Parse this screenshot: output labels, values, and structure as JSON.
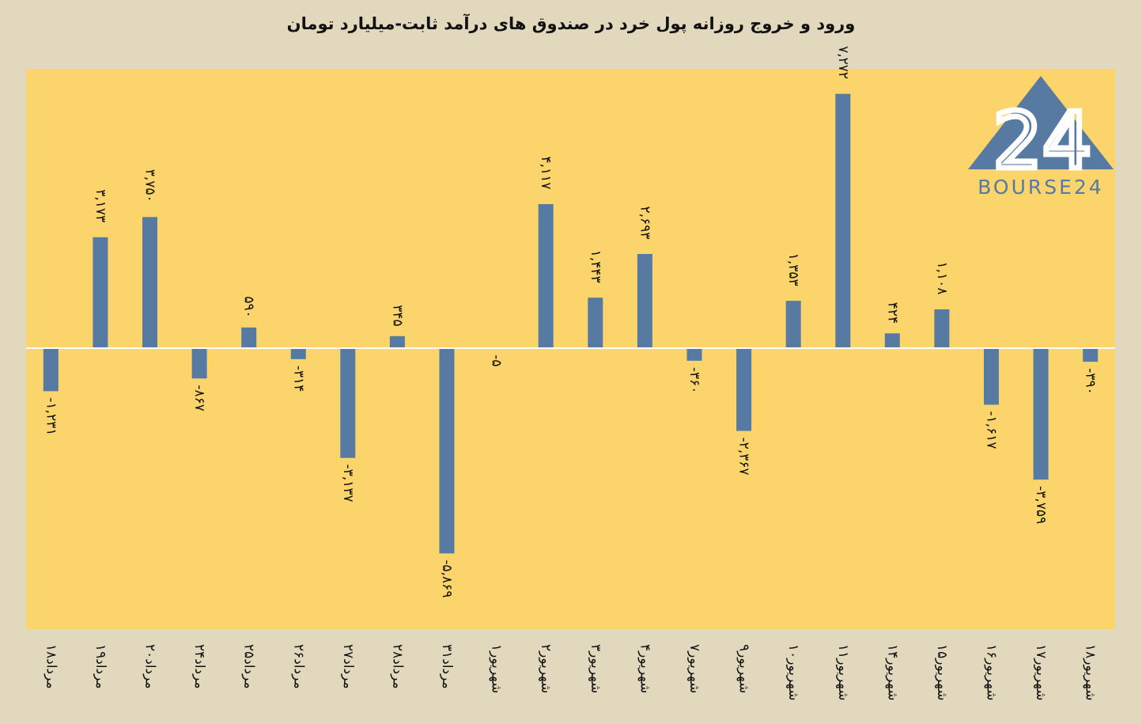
{
  "chart_data": {
    "type": "bar",
    "title": "ورود و خروج روزانه پول خرد در صندوق های درآمد ثابت-میلیارد تومان",
    "xlabel": "",
    "ylabel": "",
    "ylim": [
      -7000,
      8000
    ],
    "grid": false,
    "legend": "none",
    "categories": [
      "۱۸مرداد",
      "۱۹مرداد",
      "۲۰مرداد",
      "۲۴مرداد",
      "۲۵مرداد",
      "۲۶مرداد",
      "۲۷مرداد",
      "۲۸مرداد",
      "۳۱مرداد",
      "۱شهریور",
      "۲شهریور",
      "۳شهریور",
      "۴شهریور",
      "۷شهریور",
      "۹شهریور",
      "۱۰شهریور",
      "۱۱شهریور",
      "۱۴شهریور",
      "۱۵شهریور",
      "۱۶شهریور",
      "۱۷شهریور",
      "۱۸شهریور"
    ],
    "values": [
      -1231,
      3173,
      3750,
      -867,
      590,
      -314,
      -3137,
      345,
      -5869,
      -5,
      4117,
      1443,
      2693,
      -360,
      -2367,
      1353,
      7272,
      424,
      1108,
      -1617,
      -3759,
      -390
    ],
    "data_labels": [
      "-۱,۲۳۱",
      "۳,۱۷۳",
      "۳,۷۵۰",
      "-۸۶۷",
      "۵۹۰",
      "-۳۱۴",
      "-۳,۱۳۷",
      "۳۴۵",
      "-۵,۸۶۹",
      "-۵",
      "۴,۱۱۷",
      "۱,۴۴۳",
      "۲,۶۹۳",
      "-۳۶۰",
      "-۲,۳۶۷",
      "۱,۳۵۳",
      "۷,۲۷۲",
      "۴۲۴",
      "۱,۱۰۸",
      "-۱,۶۱۷",
      "-۳,۷۵۹",
      "-۳۹۰"
    ],
    "colors": {
      "bar": "#577aa3",
      "plot_bg": "#fbd46b",
      "page_bg": "#e2d8bd",
      "zero_line": "#ffffff"
    }
  },
  "logo": {
    "text": "BOURSE24",
    "mark": "24",
    "color": "#577aa3"
  }
}
